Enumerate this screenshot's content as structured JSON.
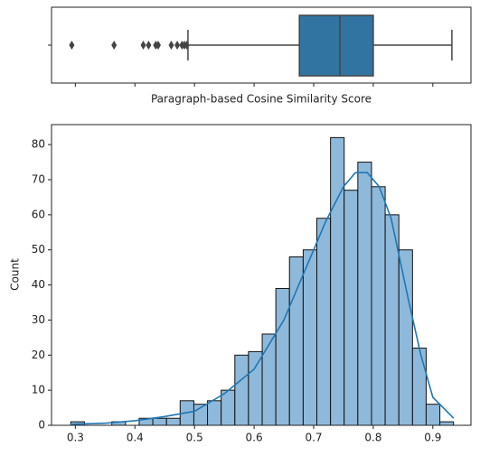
{
  "chart_data": [
    {
      "type": "box",
      "xlabel": "Paragraph-based Cosine Similarity Score",
      "whisker_low": 0.489,
      "q1": 0.676,
      "median": 0.744,
      "q3": 0.8,
      "whisker_high": 0.932,
      "outliers": [
        0.294,
        0.365,
        0.414,
        0.423,
        0.435,
        0.439,
        0.461,
        0.471,
        0.479,
        0.483,
        0.487
      ],
      "color": "#3274a1",
      "xlim": [
        0.26,
        0.964
      ],
      "xticks": [
        0.3,
        0.4,
        0.5,
        0.6,
        0.7,
        0.8,
        0.9
      ]
    },
    {
      "type": "histogram",
      "ylabel": "Count",
      "bins": [
        0.2924,
        0.3153,
        0.3383,
        0.3612,
        0.3842,
        0.4071,
        0.43,
        0.453,
        0.4759,
        0.4989,
        0.5218,
        0.5447,
        0.5677,
        0.5906,
        0.6136,
        0.6365,
        0.6594,
        0.6824,
        0.7053,
        0.7283,
        0.7512,
        0.7741,
        0.7971,
        0.82,
        0.843,
        0.8659,
        0.8888,
        0.9118,
        0.9347
      ],
      "counts": [
        1,
        0,
        0,
        1,
        0,
        2,
        2,
        2,
        7,
        6,
        7,
        10,
        20,
        21,
        26,
        39,
        48,
        50,
        59,
        82,
        67,
        75,
        68,
        60,
        50,
        22,
        6,
        1
      ],
      "color": "#8fb9da",
      "kde": {
        "color": "#1f77b4",
        "x": [
          0.295,
          0.35,
          0.4,
          0.45,
          0.5,
          0.55,
          0.6,
          0.65,
          0.7,
          0.72,
          0.75,
          0.77,
          0.79,
          0.81,
          0.83,
          0.86,
          0.88,
          0.9,
          0.935
        ],
        "y": [
          0.3,
          0.6,
          1.3,
          2.5,
          4,
          9,
          16,
          30,
          50,
          58,
          68,
          72,
          72,
          68,
          59,
          35,
          20,
          8,
          2
        ]
      },
      "xlim": [
        0.26,
        0.964
      ],
      "ylim": [
        0,
        85.7
      ],
      "xticks": [
        0.3,
        0.4,
        0.5,
        0.6,
        0.7,
        0.8,
        0.9
      ],
      "yticks": [
        0,
        10,
        20,
        30,
        40,
        50,
        60,
        70,
        80
      ]
    }
  ]
}
